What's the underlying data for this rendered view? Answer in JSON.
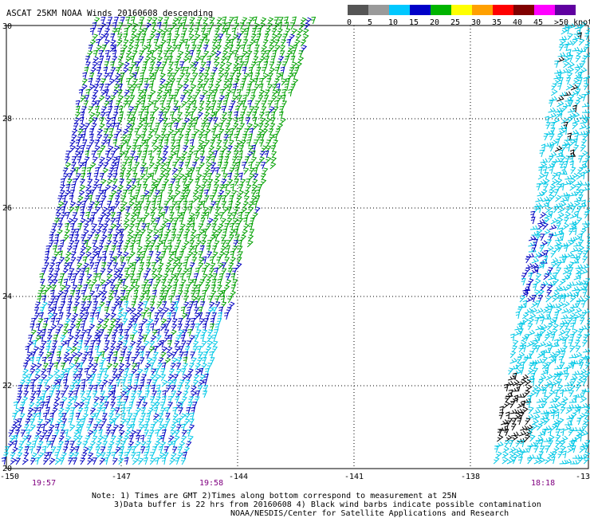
{
  "title": "ASCAT 25KM NOAA Winds 20160608 descending",
  "legend": {
    "labels": [
      "0",
      "5",
      "10",
      "15",
      "20",
      "25",
      "30",
      "35",
      "40",
      "45",
      ">50 knots"
    ],
    "colors": [
      "#555555",
      "#9a9a9a",
      "#00c8ff",
      "#0000c8",
      "#00b400",
      "#ffff00",
      "#ffa000",
      "#ff0000",
      "#800000",
      "#ff00ff",
      "#6000a0"
    ]
  },
  "axes": {
    "lat_labels": [
      "30",
      "28",
      "26",
      "24",
      "22",
      "20"
    ],
    "lon_labels": [
      "-150",
      "-147",
      "-144",
      "-141",
      "-138",
      "-13"
    ]
  },
  "times": [
    "19:57",
    "19:58",
    "18:18"
  ],
  "notes": {
    "line1": "Note: 1) Times are GMT 2)Times along bottom correspond to measurement at 25N",
    "line2": "3)Data buffer is 22 hrs from 20160608 4) Black wind barbs indicate possible contamination",
    "line3": "NOAA/NESDIS/Center for Satellite Applications and Research"
  },
  "colors": {
    "green": "#00a000",
    "blue": "#0000c0",
    "cyan": "#00c8e6",
    "black": "#000000",
    "grid": "#000000",
    "time_text": "#800080"
  }
}
